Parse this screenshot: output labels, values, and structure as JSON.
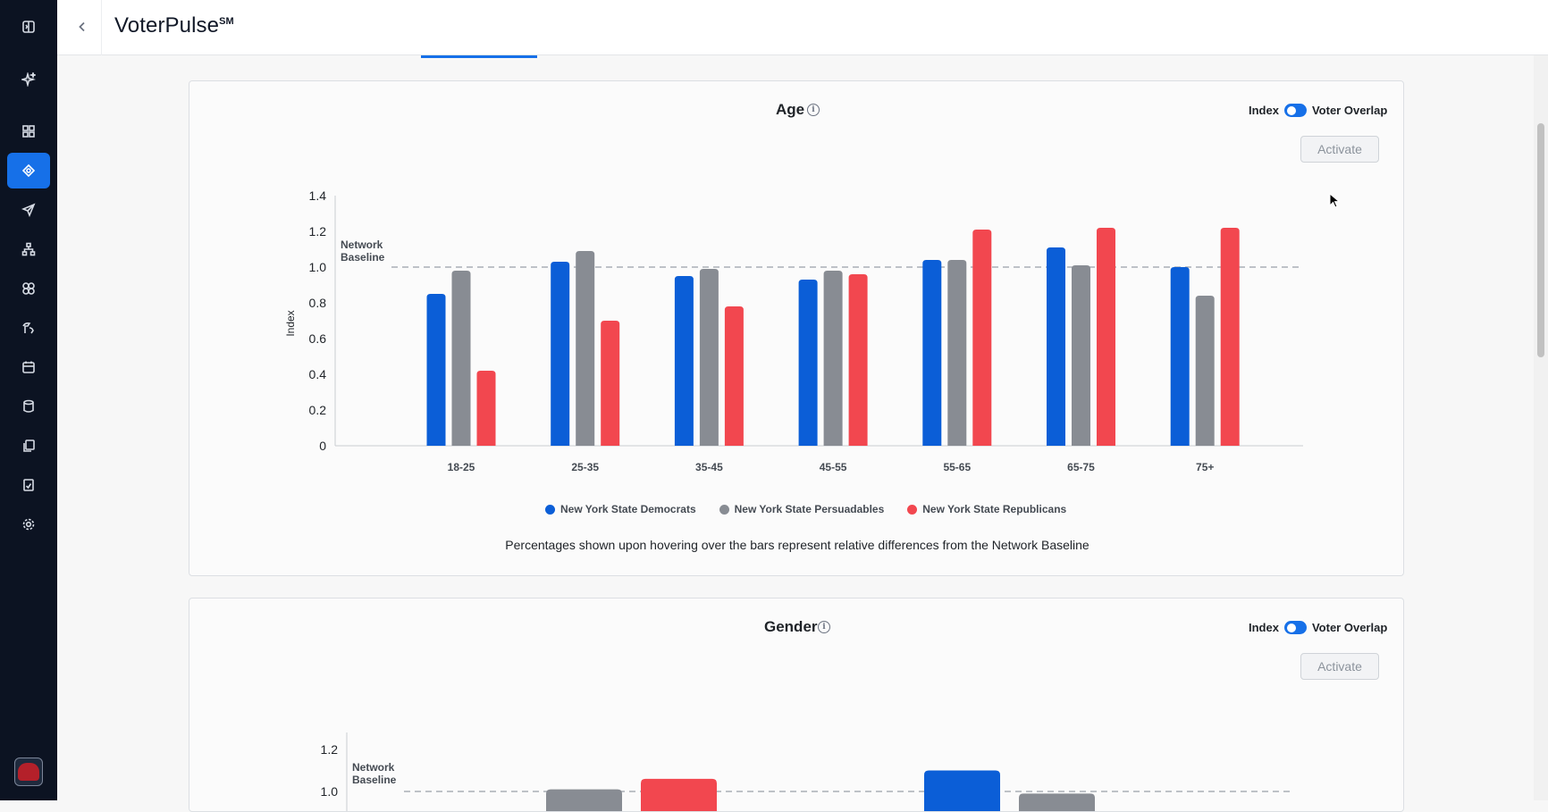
{
  "app": {
    "title": "VoterPulse",
    "title_mark": "SM"
  },
  "sidebar": {
    "items": [
      {
        "name": "sidebar-toggle-icon",
        "active": false
      },
      {
        "name": "sparkle-icon",
        "active": false
      },
      {
        "name": "dashboard-icon",
        "active": false
      },
      {
        "name": "audience-target-icon",
        "active": true
      },
      {
        "name": "send-icon",
        "active": false
      },
      {
        "name": "hierarchy-icon",
        "active": false
      },
      {
        "name": "segments-icon",
        "active": false
      },
      {
        "name": "tools-icon",
        "active": false
      },
      {
        "name": "calendar-icon",
        "active": false
      },
      {
        "name": "database-icon",
        "active": false
      },
      {
        "name": "copy-docs-icon",
        "active": false
      },
      {
        "name": "report-icon",
        "active": false
      },
      {
        "name": "settings-icon",
        "active": false
      }
    ],
    "avatar_icon": "elephant-logo-icon"
  },
  "cards": {
    "age": {
      "title": "Age",
      "toggle_left": "Index",
      "toggle_right": "Voter Overlap",
      "activate_label": "Activate",
      "baseline_label_line1": "Network",
      "baseline_label_line2": "Baseline",
      "note": "Percentages shown upon hovering over the bars represent relative differences from the Network Baseline"
    },
    "gender": {
      "title": "Gender",
      "toggle_left": "Index",
      "toggle_right": "Voter Overlap",
      "activate_label": "Activate",
      "baseline_label_line1": "Network",
      "baseline_label_line2": "Baseline"
    }
  },
  "colors": {
    "democrats": "#0b5ed7",
    "persuadables": "#888c93",
    "republicans": "#f2474f",
    "accent": "#1670e8"
  },
  "chart_data": [
    {
      "type": "bar",
      "title": "Age",
      "ylabel": "Index",
      "xlabel": "",
      "categories": [
        "18-25",
        "25-35",
        "35-45",
        "45-55",
        "55-65",
        "65-75",
        "75+"
      ],
      "series": [
        {
          "name": "New York State Democrats",
          "values": [
            0.85,
            1.03,
            0.95,
            0.93,
            1.04,
            1.11,
            1.0
          ]
        },
        {
          "name": "New York State Persuadables",
          "values": [
            0.98,
            1.09,
            0.99,
            0.98,
            1.04,
            1.01,
            0.84
          ]
        },
        {
          "name": "New York State Republicans",
          "values": [
            0.42,
            0.7,
            0.78,
            0.96,
            1.21,
            1.22,
            1.22
          ]
        }
      ],
      "yticks": [
        "0",
        "0.2",
        "0.4",
        "0.6",
        "0.8",
        "1.0",
        "1.2",
        "1.4"
      ],
      "ylim": [
        0,
        1.4
      ],
      "baseline": 1.0,
      "legend": "bottom-center"
    },
    {
      "type": "bar",
      "title": "Gender",
      "ylabel": "Index",
      "yticks": [
        "1.0",
        "1.2"
      ],
      "ylim": [
        0,
        1.2
      ],
      "baseline": 1.0,
      "visible_bars": [
        {
          "series": "New York State Persuadables",
          "value": 1.01
        },
        {
          "series": "New York State Republicans",
          "value": 1.06
        },
        {
          "series": "New York State Democrats",
          "value": 1.1
        },
        {
          "series": "New York State Persuadables",
          "value": 0.99
        }
      ]
    }
  ]
}
